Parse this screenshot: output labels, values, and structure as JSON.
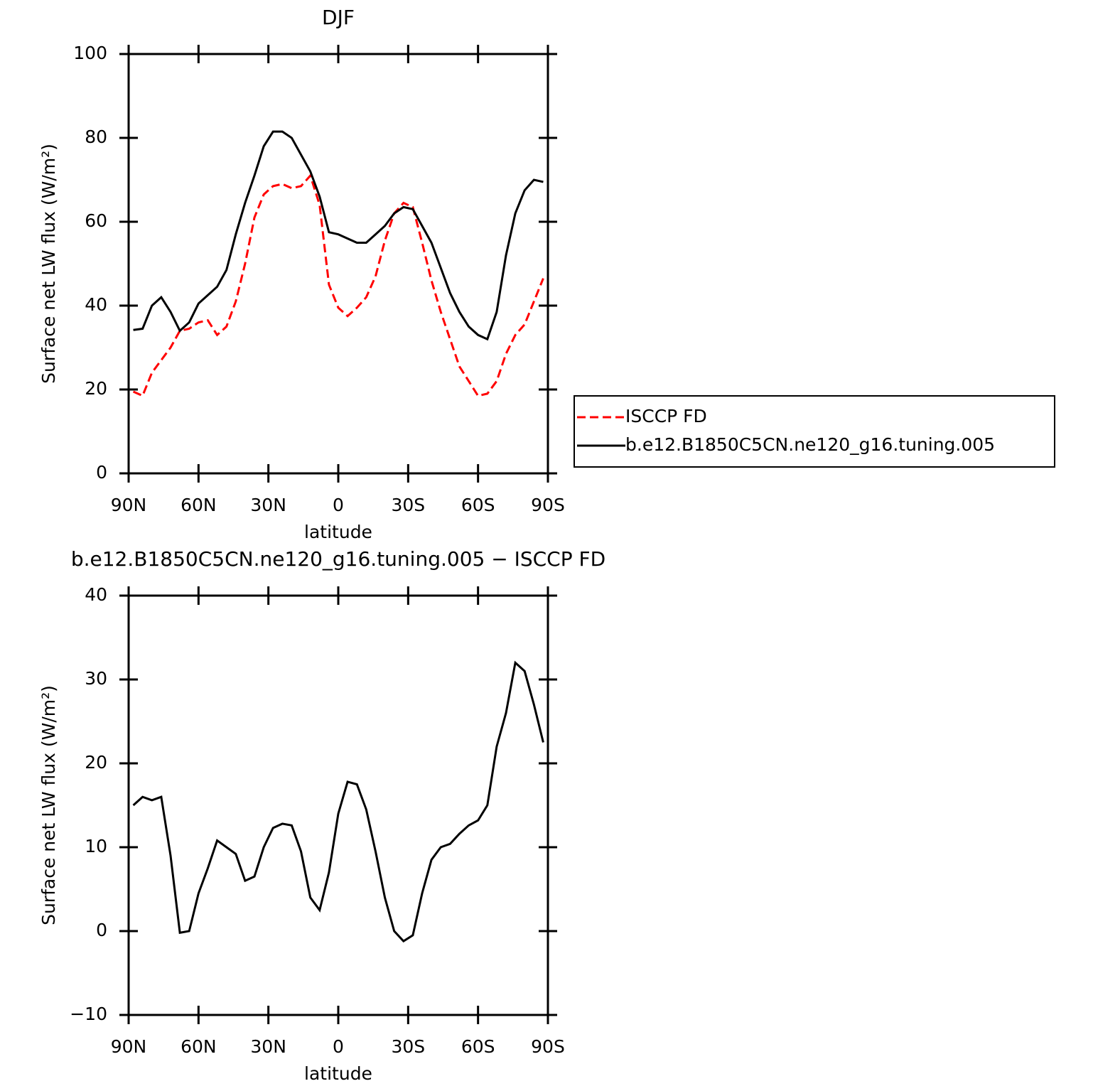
{
  "chart_data": [
    {
      "type": "line",
      "title": "DJF",
      "x_label": "latitude",
      "y_label": "Surface net LW flux (W/m²)",
      "x": [
        88,
        84,
        80,
        76,
        72,
        68,
        64,
        60,
        56,
        52,
        48,
        44,
        40,
        36,
        32,
        28,
        24,
        20,
        16,
        12,
        8,
        4,
        0,
        -4,
        -8,
        -12,
        -16,
        -20,
        -24,
        -28,
        -32,
        -36,
        -40,
        -44,
        -48,
        -52,
        -56,
        -60,
        -64,
        -68,
        -72,
        -76,
        -80,
        -84,
        -88
      ],
      "xlim": [
        90,
        -90
      ],
      "xticks": [
        {
          "value": 90,
          "label": "90N"
        },
        {
          "value": 60,
          "label": "60N"
        },
        {
          "value": 30,
          "label": "30N"
        },
        0,
        {
          "value": -30,
          "label": "30S"
        },
        {
          "value": -60,
          "label": "60S"
        },
        {
          "value": -90,
          "label": "90S"
        }
      ],
      "ylim": [
        0,
        100
      ],
      "yticks": [
        0,
        20,
        40,
        60,
        80,
        100
      ],
      "legend": "right",
      "series": [
        {
          "name": "ISCCP FD",
          "color": "#ff0000",
          "linestyle": "dashed",
          "values": [
            19.5,
            18.5,
            24,
            27,
            30,
            34,
            34.5,
            36,
            36.5,
            33,
            35,
            41,
            50,
            61,
            66.5,
            68.5,
            69,
            68,
            68.5,
            71,
            64,
            45,
            39.5,
            37.5,
            39.5,
            42,
            47,
            55.5,
            62,
            64.5,
            63.5,
            55,
            46,
            38.5,
            32,
            25.5,
            22,
            18.5,
            19,
            22,
            28.5,
            33,
            35.5,
            41,
            46.5
          ]
        },
        {
          "name": "b.e12.B1850C5CN.ne120_g16.tuning.005",
          "color": "#000000",
          "linestyle": "solid",
          "values": [
            34.2,
            34.5,
            40,
            42,
            38.5,
            34,
            36,
            40.5,
            42.5,
            44.5,
            48.5,
            57,
            64.5,
            71,
            78,
            81.5,
            81.5,
            80,
            76,
            72,
            66,
            57.5,
            57,
            56,
            55,
            55,
            57,
            59,
            62,
            63.5,
            63,
            59,
            55,
            49,
            43,
            38.5,
            35,
            33,
            32,
            38.5,
            52,
            62,
            67.5,
            70,
            69.5
          ]
        }
      ]
    },
    {
      "type": "line",
      "title": "b.e12.B1850C5CN.ne120_g16.tuning.005 − ISCCP FD",
      "x_label": "latitude",
      "y_label": "Surface net LW flux (W/m²)",
      "x": [
        88,
        84,
        80,
        76,
        72,
        68,
        64,
        60,
        56,
        52,
        48,
        44,
        40,
        36,
        32,
        28,
        24,
        20,
        16,
        12,
        8,
        4,
        0,
        -4,
        -8,
        -12,
        -16,
        -20,
        -24,
        -28,
        -32,
        -36,
        -40,
        -44,
        -48,
        -52,
        -56,
        -60,
        -64,
        -68,
        -72,
        -76,
        -80,
        -84,
        -88
      ],
      "xlim": [
        90,
        -90
      ],
      "xticks": [
        {
          "value": 90,
          "label": "90N"
        },
        {
          "value": 60,
          "label": "60N"
        },
        {
          "value": 30,
          "label": "30N"
        },
        0,
        {
          "value": -30,
          "label": "30S"
        },
        {
          "value": -60,
          "label": "60S"
        },
        {
          "value": -90,
          "label": "90S"
        }
      ],
      "ylim": [
        -10,
        40
      ],
      "yticks": [
        {
          "value": -10,
          "label": "−10"
        },
        0,
        10,
        20,
        30,
        40
      ],
      "series": [
        {
          "color": "#000000",
          "linestyle": "solid",
          "values": [
            15,
            16,
            15.6,
            16,
            9,
            -0.2,
            0,
            4.5,
            7.5,
            10.8,
            10,
            9.2,
            6,
            6.5,
            10,
            12.3,
            12.8,
            12.6,
            9.5,
            4,
            2.5,
            7,
            14,
            17.8,
            17.5,
            14.5,
            9.5,
            4,
            0,
            -1.2,
            -0.5,
            4.5,
            8.5,
            10,
            10.4,
            11.6,
            12.6,
            13.2,
            15,
            22,
            26,
            32,
            31,
            27,
            22.5
          ]
        }
      ]
    }
  ]
}
